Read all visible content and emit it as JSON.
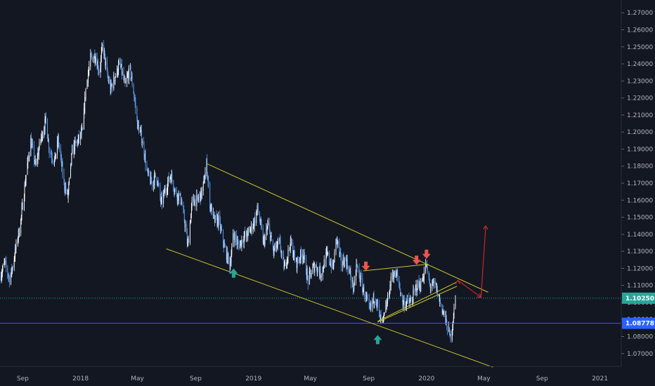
{
  "chart_data": {
    "type": "candlestick",
    "title": "",
    "xlabel": "",
    "ylabel": "",
    "ylim": [
      1.0625,
      1.2775
    ],
    "xlim": [
      "2017-07-15",
      "2021-02-15"
    ],
    "grid": false,
    "x_ticks": [
      {
        "date": "2017-09-01",
        "label": "Sep"
      },
      {
        "date": "2018-01-01",
        "label": "2018"
      },
      {
        "date": "2018-05-01",
        "label": "May"
      },
      {
        "date": "2018-09-01",
        "label": "Sep"
      },
      {
        "date": "2019-01-01",
        "label": "2019"
      },
      {
        "date": "2019-05-01",
        "label": "May"
      },
      {
        "date": "2019-09-01",
        "label": "Sep"
      },
      {
        "date": "2020-01-01",
        "label": "2020"
      },
      {
        "date": "2020-05-01",
        "label": "May"
      },
      {
        "date": "2020-09-01",
        "label": "Sep"
      },
      {
        "date": "2021-01-01",
        "label": "2021"
      }
    ],
    "y_ticks": [
      1.07,
      1.08,
      1.09,
      1.1,
      1.11,
      1.12,
      1.13,
      1.14,
      1.15,
      1.16,
      1.17,
      1.18,
      1.19,
      1.2,
      1.21,
      1.22,
      1.23,
      1.24,
      1.25,
      1.26,
      1.27
    ],
    "y_tick_labels": [
      "1.07000",
      "1.08000",
      "1.09000",
      "1.10000",
      "1.11000",
      "1.12000",
      "1.13000",
      "1.14000",
      "1.15000",
      "1.16000",
      "1.17000",
      "1.18000",
      "1.19000",
      "1.20000",
      "1.21000",
      "1.22000",
      "1.23000",
      "1.24000",
      "1.25000",
      "1.26000",
      "1.27000"
    ],
    "series": [
      {
        "price_path": [
          [
            "2017-07-15",
            1.115
          ],
          [
            "2017-07-25",
            1.123
          ],
          [
            "2017-08-05",
            1.113
          ],
          [
            "2017-08-15",
            1.128
          ],
          [
            "2017-08-28",
            1.148
          ],
          [
            "2017-09-08",
            1.175
          ],
          [
            "2017-09-18",
            1.195
          ],
          [
            "2017-09-28",
            1.18
          ],
          [
            "2017-10-10",
            1.197
          ],
          [
            "2017-10-20",
            1.207
          ],
          [
            "2017-10-27",
            1.19
          ],
          [
            "2017-11-07",
            1.183
          ],
          [
            "2017-11-15",
            1.195
          ],
          [
            "2017-11-27",
            1.17
          ],
          [
            "2017-12-05",
            1.162
          ],
          [
            "2017-12-15",
            1.19
          ],
          [
            "2017-12-27",
            1.195
          ],
          [
            "2018-01-05",
            1.2
          ],
          [
            "2018-01-12",
            1.225
          ],
          [
            "2018-01-22",
            1.243
          ],
          [
            "2018-02-01",
            1.245
          ],
          [
            "2018-02-10",
            1.235
          ],
          [
            "2018-02-17",
            1.252
          ],
          [
            "2018-02-25",
            1.235
          ],
          [
            "2018-03-05",
            1.225
          ],
          [
            "2018-03-15",
            1.233
          ],
          [
            "2018-03-25",
            1.24
          ],
          [
            "2018-04-05",
            1.227
          ],
          [
            "2018-04-15",
            1.237
          ],
          [
            "2018-04-22",
            1.226
          ],
          [
            "2018-05-01",
            1.205
          ],
          [
            "2018-05-12",
            1.195
          ],
          [
            "2018-05-22",
            1.175
          ],
          [
            "2018-06-01",
            1.17
          ],
          [
            "2018-06-10",
            1.175
          ],
          [
            "2018-06-20",
            1.158
          ],
          [
            "2018-07-01",
            1.168
          ],
          [
            "2018-07-10",
            1.175
          ],
          [
            "2018-07-20",
            1.165
          ],
          [
            "2018-08-01",
            1.16
          ],
          [
            "2018-08-10",
            1.145
          ],
          [
            "2018-08-15",
            1.133
          ],
          [
            "2018-08-25",
            1.16
          ],
          [
            "2018-09-05",
            1.16
          ],
          [
            "2018-09-15",
            1.165
          ],
          [
            "2018-09-24",
            1.181
          ],
          [
            "2018-10-01",
            1.158
          ],
          [
            "2018-10-10",
            1.148
          ],
          [
            "2018-10-20",
            1.148
          ],
          [
            "2018-10-31",
            1.133
          ],
          [
            "2018-11-12",
            1.122
          ],
          [
            "2018-11-20",
            1.14
          ],
          [
            "2018-12-01",
            1.133
          ],
          [
            "2018-12-10",
            1.138
          ],
          [
            "2018-12-20",
            1.14
          ],
          [
            "2019-01-02",
            1.147
          ],
          [
            "2019-01-10",
            1.155
          ],
          [
            "2019-01-22",
            1.135
          ],
          [
            "2019-02-01",
            1.145
          ],
          [
            "2019-02-12",
            1.13
          ],
          [
            "2019-02-25",
            1.135
          ],
          [
            "2019-03-07",
            1.12
          ],
          [
            "2019-03-20",
            1.135
          ],
          [
            "2019-04-01",
            1.123
          ],
          [
            "2019-04-15",
            1.13
          ],
          [
            "2019-04-26",
            1.113
          ],
          [
            "2019-05-10",
            1.122
          ],
          [
            "2019-05-23",
            1.117
          ],
          [
            "2019-06-05",
            1.128
          ],
          [
            "2019-06-18",
            1.12
          ],
          [
            "2019-06-25",
            1.138
          ],
          [
            "2019-07-05",
            1.123
          ],
          [
            "2019-07-15",
            1.125
          ],
          [
            "2019-07-25",
            1.115
          ],
          [
            "2019-08-01",
            1.107
          ],
          [
            "2019-08-06",
            1.122
          ],
          [
            "2019-08-20",
            1.108
          ],
          [
            "2019-09-03",
            1.095
          ],
          [
            "2019-09-15",
            1.105
          ],
          [
            "2019-09-25",
            1.09
          ],
          [
            "2019-10-01",
            1.088
          ],
          [
            "2019-10-10",
            1.1
          ],
          [
            "2019-10-21",
            1.117
          ],
          [
            "2019-11-01",
            1.115
          ],
          [
            "2019-11-12",
            1.1
          ],
          [
            "2019-11-29",
            1.1
          ],
          [
            "2019-12-12",
            1.11
          ],
          [
            "2019-12-20",
            1.11
          ],
          [
            "2019-12-31",
            1.122
          ],
          [
            "2020-01-08",
            1.11
          ],
          [
            "2020-01-20",
            1.11
          ],
          [
            "2020-01-30",
            1.1
          ],
          [
            "2020-02-10",
            1.09
          ],
          [
            "2020-02-20",
            1.079
          ],
          [
            "2020-02-25",
            1.088
          ],
          [
            "2020-03-02",
            1.1025
          ]
        ]
      }
    ],
    "price_lines": [
      {
        "value": 1.1025,
        "label": "1.10250",
        "style": "dotted",
        "color": "#26a69a"
      },
      {
        "value": 1.08778,
        "label": "1.08778",
        "style": "solid",
        "color": "#2962ff"
      }
    ],
    "annotations": {
      "trendlines": [
        {
          "from": [
            "2018-09-24",
            1.1815
          ],
          "to": [
            "2020-05-10",
            1.106
          ]
        },
        {
          "from": [
            "2018-07-01",
            1.1315
          ],
          "to": [
            "2020-05-20",
            1.062
          ]
        },
        {
          "from": [
            "2019-08-20",
            1.1185
          ],
          "to": [
            "2020-01-05",
            1.1225
          ]
        },
        {
          "from": [
            "2019-09-20",
            1.089
          ],
          "to": [
            "2020-03-05",
            1.112
          ]
        },
        {
          "from": [
            "2019-09-20",
            1.0885
          ],
          "to": [
            "2020-03-05",
            1.1095
          ]
        }
      ],
      "arrows": [
        {
          "date": "2018-11-20",
          "price": 1.117,
          "direction": "up",
          "color": "#26a69a"
        },
        {
          "date": "2019-09-20",
          "price": 1.078,
          "direction": "up",
          "color": "#26a69a"
        },
        {
          "date": "2019-08-26",
          "price": 1.1215,
          "direction": "down",
          "color": "#ef5350"
        },
        {
          "date": "2019-12-11",
          "price": 1.125,
          "direction": "down",
          "color": "#ef5350"
        },
        {
          "date": "2020-01-01",
          "price": 1.1285,
          "direction": "down",
          "color": "#ef5350"
        }
      ],
      "projection": [
        [
          "2020-03-07",
          1.113
        ],
        [
          "2020-04-25",
          1.103
        ],
        [
          "2020-05-05",
          1.145
        ]
      ]
    },
    "colors": {
      "background": "#131722",
      "price": "#5d9cec",
      "price_highlight": "#ffffff",
      "trendline": "#c8c82a",
      "projection": "#c62828",
      "axis_text": "#b2b5be",
      "axis_line": "#2a2e39"
    }
  }
}
